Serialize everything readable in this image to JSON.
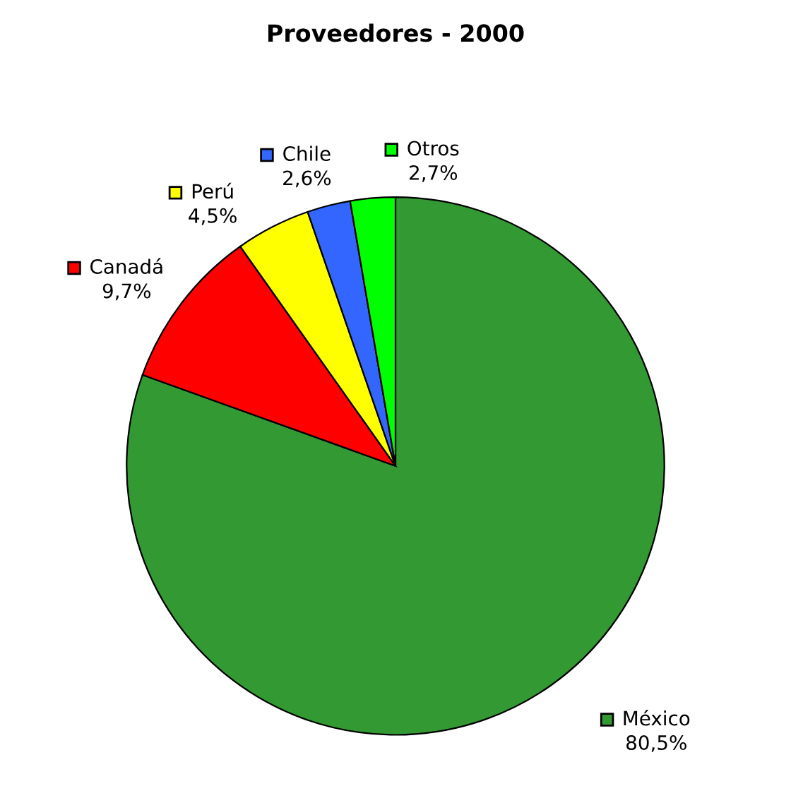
{
  "chart_data": {
    "type": "pie",
    "title": "Proveedores - 2000",
    "categories": [
      "México",
      "Canadá",
      "Perú",
      "Chile",
      "Otros"
    ],
    "values": [
      80.5,
      9.7,
      4.5,
      2.6,
      2.7
    ],
    "colors": [
      "#339933",
      "#ff0000",
      "#ffff00",
      "#3366ff",
      "#00ff00"
    ],
    "value_labels": [
      "80,5%",
      "9,7%",
      "4,5%",
      "2,6%",
      "2,7%"
    ],
    "legend": "top"
  }
}
